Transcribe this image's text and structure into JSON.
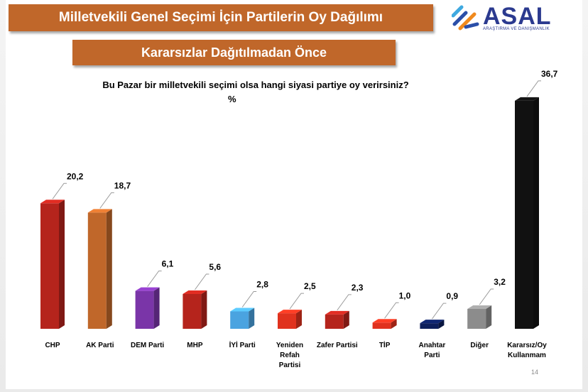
{
  "header": {
    "title": "Milletvekili Genel Seçimi İçin Partilerin Oy Dağılımı",
    "subtitle": "Kararsızlar Dağıtılmadan Önce"
  },
  "logo": {
    "name": "ASAL",
    "tagline": "ARAŞTIRMA VE DANIŞMANLIK",
    "icon": "asal-logo-icon"
  },
  "question": "Bu Pazar bir milletvekili seçimi olsa hangi siyasi partiye oy verirsiniz?",
  "unit": "%",
  "page_number": "14",
  "chart_data": {
    "type": "bar",
    "categories": [
      [
        "CHP"
      ],
      [
        "AK Parti"
      ],
      [
        "DEM Parti"
      ],
      [
        "MHP"
      ],
      [
        "İYİ Parti"
      ],
      [
        "Yeniden",
        "Refah",
        "Partisi"
      ],
      [
        "Zafer Partisi"
      ],
      [
        "TİP"
      ],
      [
        "Anahtar",
        "Parti"
      ],
      [
        "Diğer"
      ],
      [
        "Kararsız/Oy",
        "Kullanmam"
      ]
    ],
    "values": [
      20.2,
      18.7,
      6.1,
      5.6,
      2.8,
      2.5,
      2.3,
      1.0,
      0.9,
      3.2,
      36.7
    ],
    "value_labels": [
      "20,2",
      "18,7",
      "6,1",
      "5,6",
      "2,8",
      "2,5",
      "2,3",
      "1,0",
      "0,9",
      "3,2",
      "36,7"
    ],
    "colors": [
      "#b5241c",
      "#c0672a",
      "#7a35a8",
      "#b5241c",
      "#4aa3e0",
      "#e0321e",
      "#b5241c",
      "#e0321e",
      "#0d1f5c",
      "#8c8c8c",
      "#111111"
    ],
    "title": "Milletvekili Genel Seçimi İçin Partilerin Oy Dağılımı",
    "ylabel": "%",
    "grid": false,
    "legend": "none"
  }
}
